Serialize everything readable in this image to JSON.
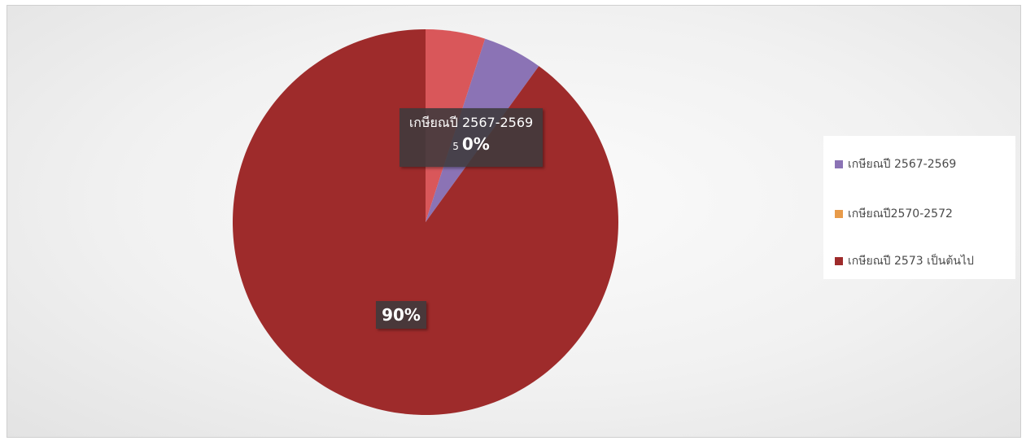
{
  "chart_data": {
    "type": "pie",
    "series": [
      {
        "name": "เกษียณปี 2567-2569",
        "value": 5,
        "color": "#8B73B5"
      },
      {
        "name": "เกษียณปี2570-2572",
        "value": 5,
        "color": "#D9575A"
      },
      {
        "name": "เกษียณปี 2573 เป็นต้นไป",
        "value": 90,
        "color": "#9E2B2B"
      }
    ],
    "legend_entries": [
      {
        "label": "เกษียณปี 2567-2569",
        "color": "#8B73B5"
      },
      {
        "label": "เกษียณปี2570-2572",
        "color": "#E89B4A"
      },
      {
        "label": "เกษียณปี 2573 เป็นต้นไป",
        "color": "#9E2B2B"
      }
    ],
    "data_labels": {
      "small_name": "เกษียณปี 2567-2569",
      "small_prefix": "5",
      "small_value": "0%",
      "large_value": "90%"
    },
    "legend_position": "right"
  }
}
